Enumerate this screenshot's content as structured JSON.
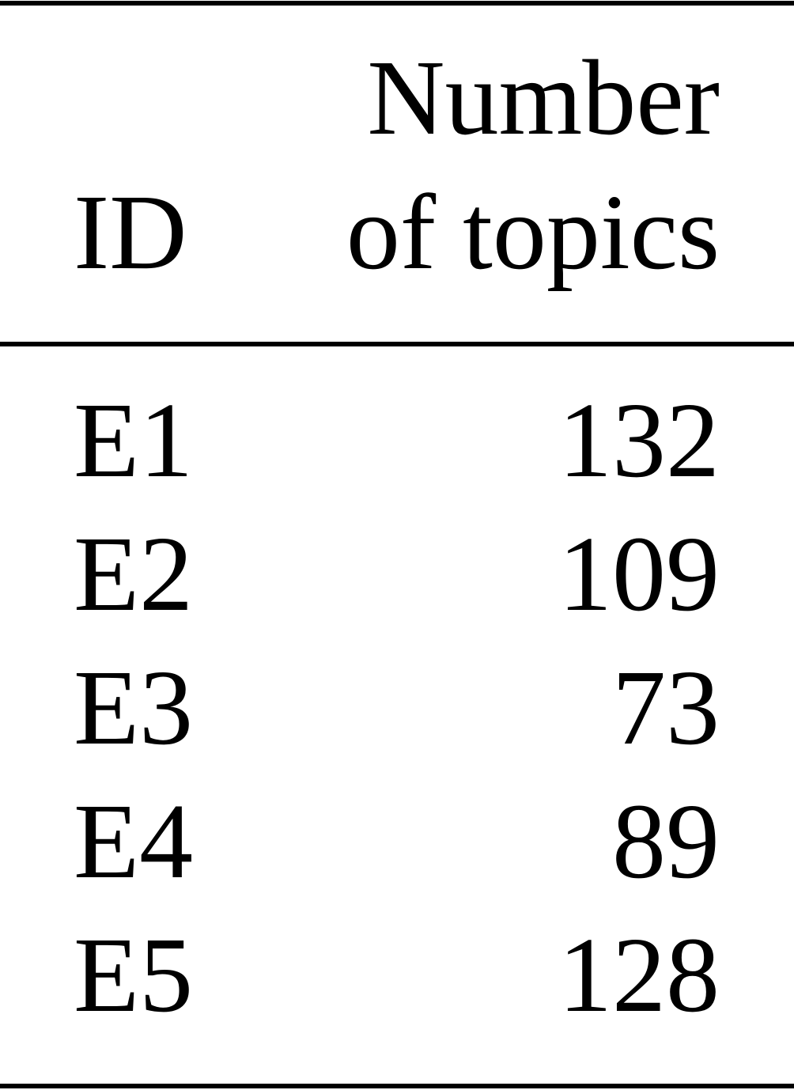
{
  "table": {
    "headers": {
      "id": "ID",
      "topics_line1": "Number",
      "topics_line2": "of topics"
    },
    "rows": [
      {
        "id": "E1",
        "topics": "132"
      },
      {
        "id": "E2",
        "topics": "109"
      },
      {
        "id": "E3",
        "topics": "73"
      },
      {
        "id": "E4",
        "topics": "89"
      },
      {
        "id": "E5",
        "topics": "128"
      }
    ]
  }
}
